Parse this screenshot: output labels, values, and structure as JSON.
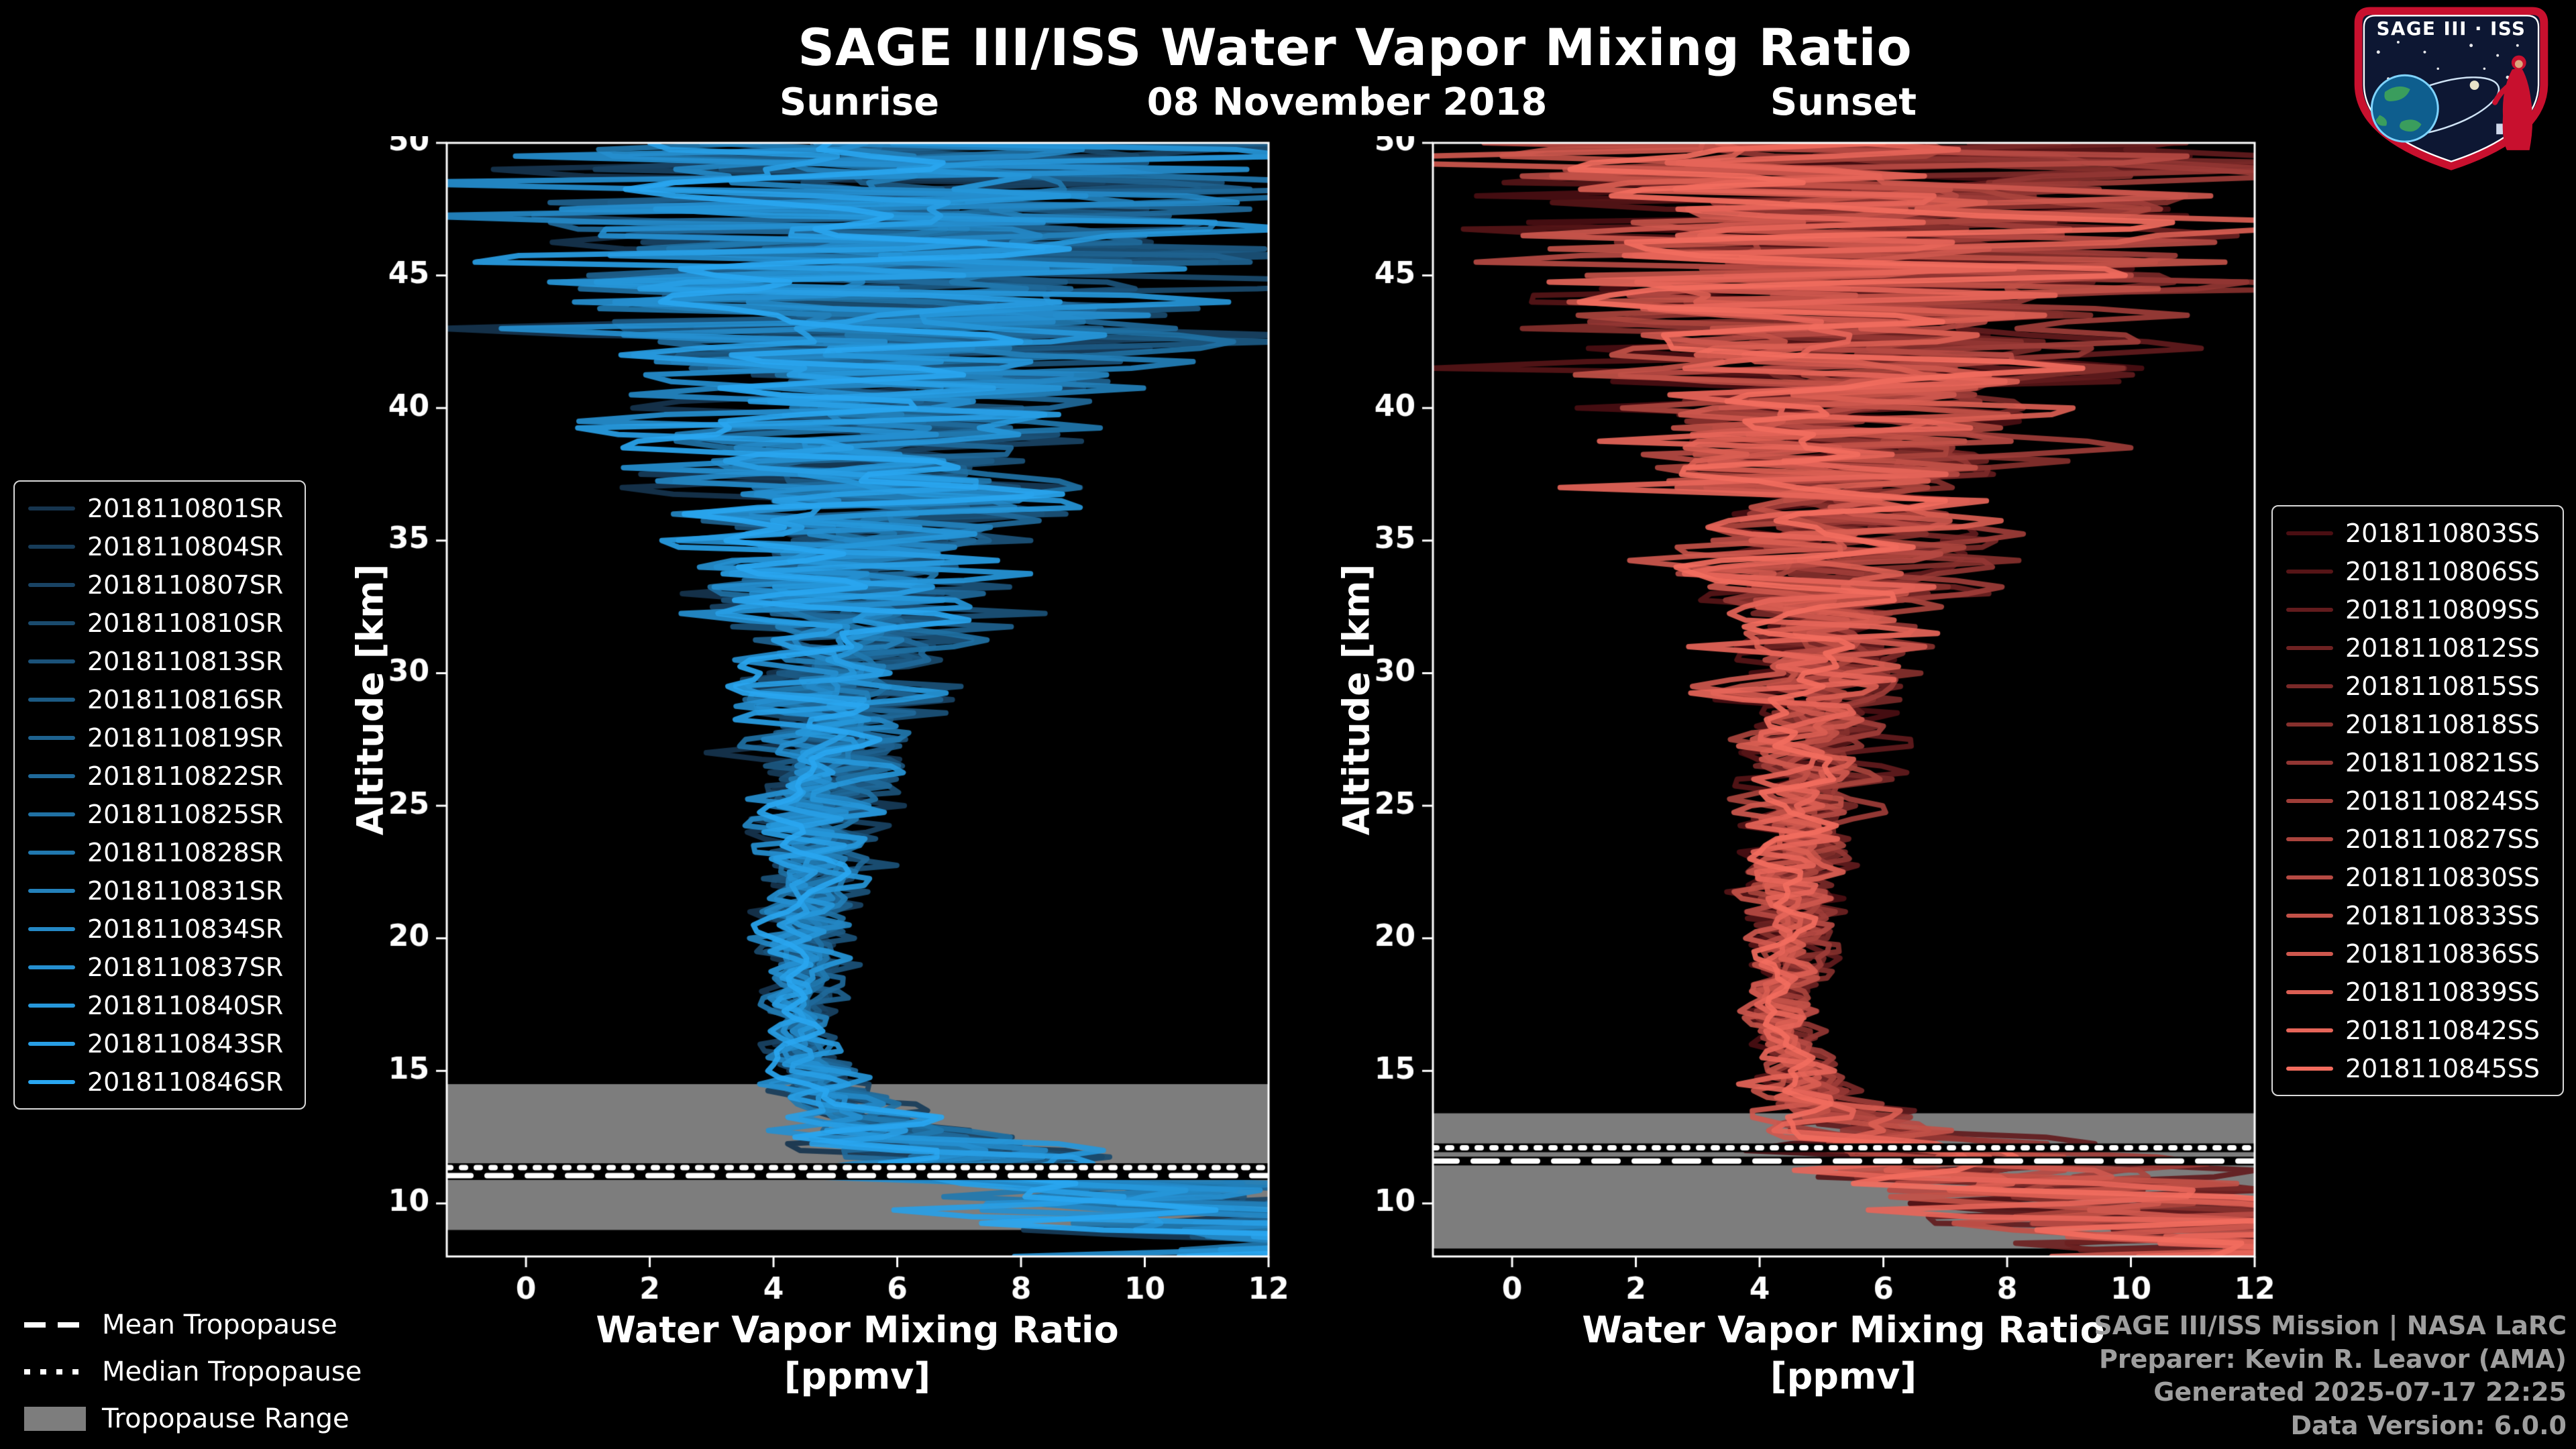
{
  "header": {
    "title": "SAGE III/ISS Water Vapor Mixing Ratio",
    "date": "08 November 2018"
  },
  "logo": {
    "title": "SAGE III · ISS"
  },
  "legend_tropopause": {
    "mean": "Mean Tropopause",
    "median": "Median Tropopause",
    "range": "Tropopause Range"
  },
  "footer": {
    "lines": [
      "SAGE III/ISS Mission | NASA LaRC",
      "Preparer: Kevin R. Leavor (AMA)",
      "Generated 2025-07-17 22:25",
      "Data Version: 6.0.0"
    ]
  },
  "chart_data": [
    {
      "type": "line",
      "panel": "sunrise",
      "title": "Sunrise",
      "xlabel": "Water Vapor Mixing Ratio",
      "xlabel_units": "[ppmv]",
      "ylabel": "Altitude [km]",
      "xlim": [
        -1.28,
        12.0
      ],
      "ylim": [
        8.0,
        50.0
      ],
      "xticks": [
        0,
        2,
        4,
        6,
        8,
        10,
        12
      ],
      "yticks": [
        10,
        15,
        20,
        25,
        30,
        35,
        40,
        45,
        50
      ],
      "grid": false,
      "legend_position": "left",
      "seed": 11,
      "background": "#000000",
      "band_color": "#7d7d7d",
      "series": [
        {
          "name": "2018110801SR",
          "color": "#16344E"
        },
        {
          "name": "2018110804SR",
          "color": "#173C59"
        },
        {
          "name": "2018110807SR",
          "color": "#194364"
        },
        {
          "name": "2018110810SR",
          "color": "#1A4B6E"
        },
        {
          "name": "2018110813SR",
          "color": "#1B5279"
        },
        {
          "name": "2018110816SR",
          "color": "#1C5A84"
        },
        {
          "name": "2018110819SR",
          "color": "#1E628F"
        },
        {
          "name": "2018110822SR",
          "color": "#1F699A"
        },
        {
          "name": "2018110825SR",
          "color": "#2071A4"
        },
        {
          "name": "2018110828SR",
          "color": "#2178AF"
        },
        {
          "name": "2018110831SR",
          "color": "#2380BA"
        },
        {
          "name": "2018110834SR",
          "color": "#2488C5"
        },
        {
          "name": "2018110837SR",
          "color": "#258FD0"
        },
        {
          "name": "2018110840SR",
          "color": "#2697DA"
        },
        {
          "name": "2018110843SR",
          "color": "#289EE5"
        },
        {
          "name": "2018110846SR",
          "color": "#29A6F0"
        }
      ],
      "base_profile": {
        "altitude_km": [
          8,
          9,
          10,
          11,
          12,
          13,
          14,
          15,
          16,
          18,
          20,
          22,
          25,
          28,
          30,
          32,
          35,
          38,
          40,
          42,
          45,
          48,
          50
        ],
        "ppmv": [
          14.0,
          12.5,
          10.5,
          8.2,
          6.6,
          5.6,
          4.95,
          4.6,
          4.45,
          4.4,
          4.5,
          4.6,
          4.75,
          4.9,
          5.0,
          5.1,
          5.25,
          5.4,
          5.55,
          5.7,
          5.9,
          6.1,
          6.2
        ]
      },
      "spread_envelope": {
        "altitude_km": [
          8,
          9,
          10,
          11,
          12,
          13,
          14,
          15,
          16,
          18,
          20,
          22,
          25,
          28,
          30,
          32,
          35,
          38,
          40,
          42,
          45,
          48,
          50
        ],
        "ppmv_halfwidth": [
          5.2,
          4.6,
          3.8,
          3.0,
          2.1,
          1.35,
          0.85,
          0.6,
          0.5,
          0.52,
          0.62,
          0.72,
          0.92,
          1.15,
          1.4,
          1.75,
          2.3,
          2.9,
          3.3,
          3.9,
          4.8,
          5.5,
          5.9
        ]
      },
      "tropopause": {
        "mean_km": 11.05,
        "median_km": 11.35,
        "range_km": [
          9.0,
          14.5
        ]
      }
    },
    {
      "type": "line",
      "panel": "sunset",
      "title": "Sunset",
      "xlabel": "Water Vapor Mixing Ratio",
      "xlabel_units": "[ppmv]",
      "ylabel": "Altitude [km]",
      "xlim": [
        -1.28,
        12.0
      ],
      "ylim": [
        8.0,
        50.0
      ],
      "xticks": [
        0,
        2,
        4,
        6,
        8,
        10,
        12
      ],
      "yticks": [
        10,
        15,
        20,
        25,
        30,
        35,
        40,
        45,
        50
      ],
      "grid": false,
      "legend_position": "right",
      "seed": 29,
      "background": "#000000",
      "band_color": "#7d7d7d",
      "series": [
        {
          "name": "2018110803SS",
          "color": "#4A0E12"
        },
        {
          "name": "2018110806SS",
          "color": "#561517"
        },
        {
          "name": "2018110809SS",
          "color": "#621B1D"
        },
        {
          "name": "2018110812SS",
          "color": "#6E2222"
        },
        {
          "name": "2018110815SS",
          "color": "#7A2928"
        },
        {
          "name": "2018110818SS",
          "color": "#86302D"
        },
        {
          "name": "2018110821SS",
          "color": "#923633"
        },
        {
          "name": "2018110824SS",
          "color": "#9E3D38"
        },
        {
          "name": "2018110827SS",
          "color": "#AA443D"
        },
        {
          "name": "2018110830SS",
          "color": "#B64A43"
        },
        {
          "name": "2018110833SS",
          "color": "#C25148"
        },
        {
          "name": "2018110836SS",
          "color": "#CE584E"
        },
        {
          "name": "2018110839SS",
          "color": "#DA5E53"
        },
        {
          "name": "2018110842SS",
          "color": "#E66559"
        },
        {
          "name": "2018110845SS",
          "color": "#F26C5E"
        }
      ],
      "base_profile": {
        "altitude_km": [
          8,
          9,
          10,
          11,
          12,
          13,
          14,
          15,
          16,
          18,
          20,
          22,
          25,
          28,
          30,
          32,
          35,
          38,
          40,
          42,
          45,
          48,
          50
        ],
        "ppmv": [
          14.0,
          12.5,
          10.5,
          8.2,
          6.6,
          5.6,
          4.95,
          4.6,
          4.45,
          4.4,
          4.5,
          4.6,
          4.75,
          4.9,
          5.0,
          5.1,
          5.25,
          5.4,
          5.55,
          5.7,
          5.9,
          6.1,
          6.2
        ]
      },
      "spread_envelope": {
        "altitude_km": [
          8,
          9,
          10,
          11,
          12,
          13,
          14,
          15,
          16,
          18,
          20,
          22,
          25,
          28,
          30,
          32,
          35,
          38,
          40,
          42,
          45,
          48,
          50
        ],
        "ppmv_halfwidth": [
          5.2,
          4.6,
          3.8,
          3.0,
          2.1,
          1.35,
          0.85,
          0.6,
          0.5,
          0.52,
          0.62,
          0.72,
          0.92,
          1.15,
          1.4,
          1.75,
          2.3,
          2.9,
          3.3,
          3.9,
          4.8,
          5.5,
          5.9
        ]
      },
      "tropopause": {
        "mean_km": 11.6,
        "median_km": 12.1,
        "range_km": [
          8.3,
          13.4
        ]
      }
    }
  ]
}
